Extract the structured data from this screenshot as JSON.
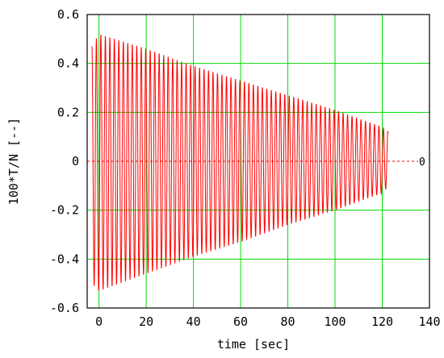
{
  "chart_data": {
    "type": "line",
    "title": "",
    "xlabel": "time [sec]",
    "ylabel": "100*T/N [--]",
    "xlim": [
      -5,
      140
    ],
    "ylim": [
      -0.6,
      0.6
    ],
    "grid": true,
    "grid_color": "#00dd00",
    "x_ticks": [
      0,
      20,
      40,
      60,
      80,
      100,
      120,
      140
    ],
    "y_ticks": [
      -0.6,
      -0.4,
      -0.2,
      0,
      0.2,
      0.4,
      0.6
    ],
    "x_tick_labels": [
      "0",
      "20",
      "40",
      "60",
      "80",
      "100",
      "120",
      "140"
    ],
    "y_tick_labels": [
      "-0.6",
      "-0.4",
      "-0.2",
      "0",
      "0.2",
      "0.4",
      "0.6"
    ],
    "reference_line": {
      "y": 0,
      "label": "0",
      "color": "#ff0000",
      "style": "dashed"
    },
    "series": [
      {
        "color": "#ff0000",
        "signal": "decaying-oscillation",
        "x_start": -3,
        "x_end": 122.5,
        "period": 1.9,
        "envelope_x": [
          -3,
          0,
          20,
          40,
          60,
          80,
          100,
          120,
          122.5
        ],
        "envelope_upper": [
          0.47,
          0.52,
          0.46,
          0.39,
          0.33,
          0.27,
          0.21,
          0.14,
          0.12
        ],
        "envelope_lower": [
          -0.5,
          -0.53,
          -0.46,
          -0.39,
          -0.33,
          -0.26,
          -0.2,
          -0.13,
          -0.1
        ]
      }
    ]
  }
}
